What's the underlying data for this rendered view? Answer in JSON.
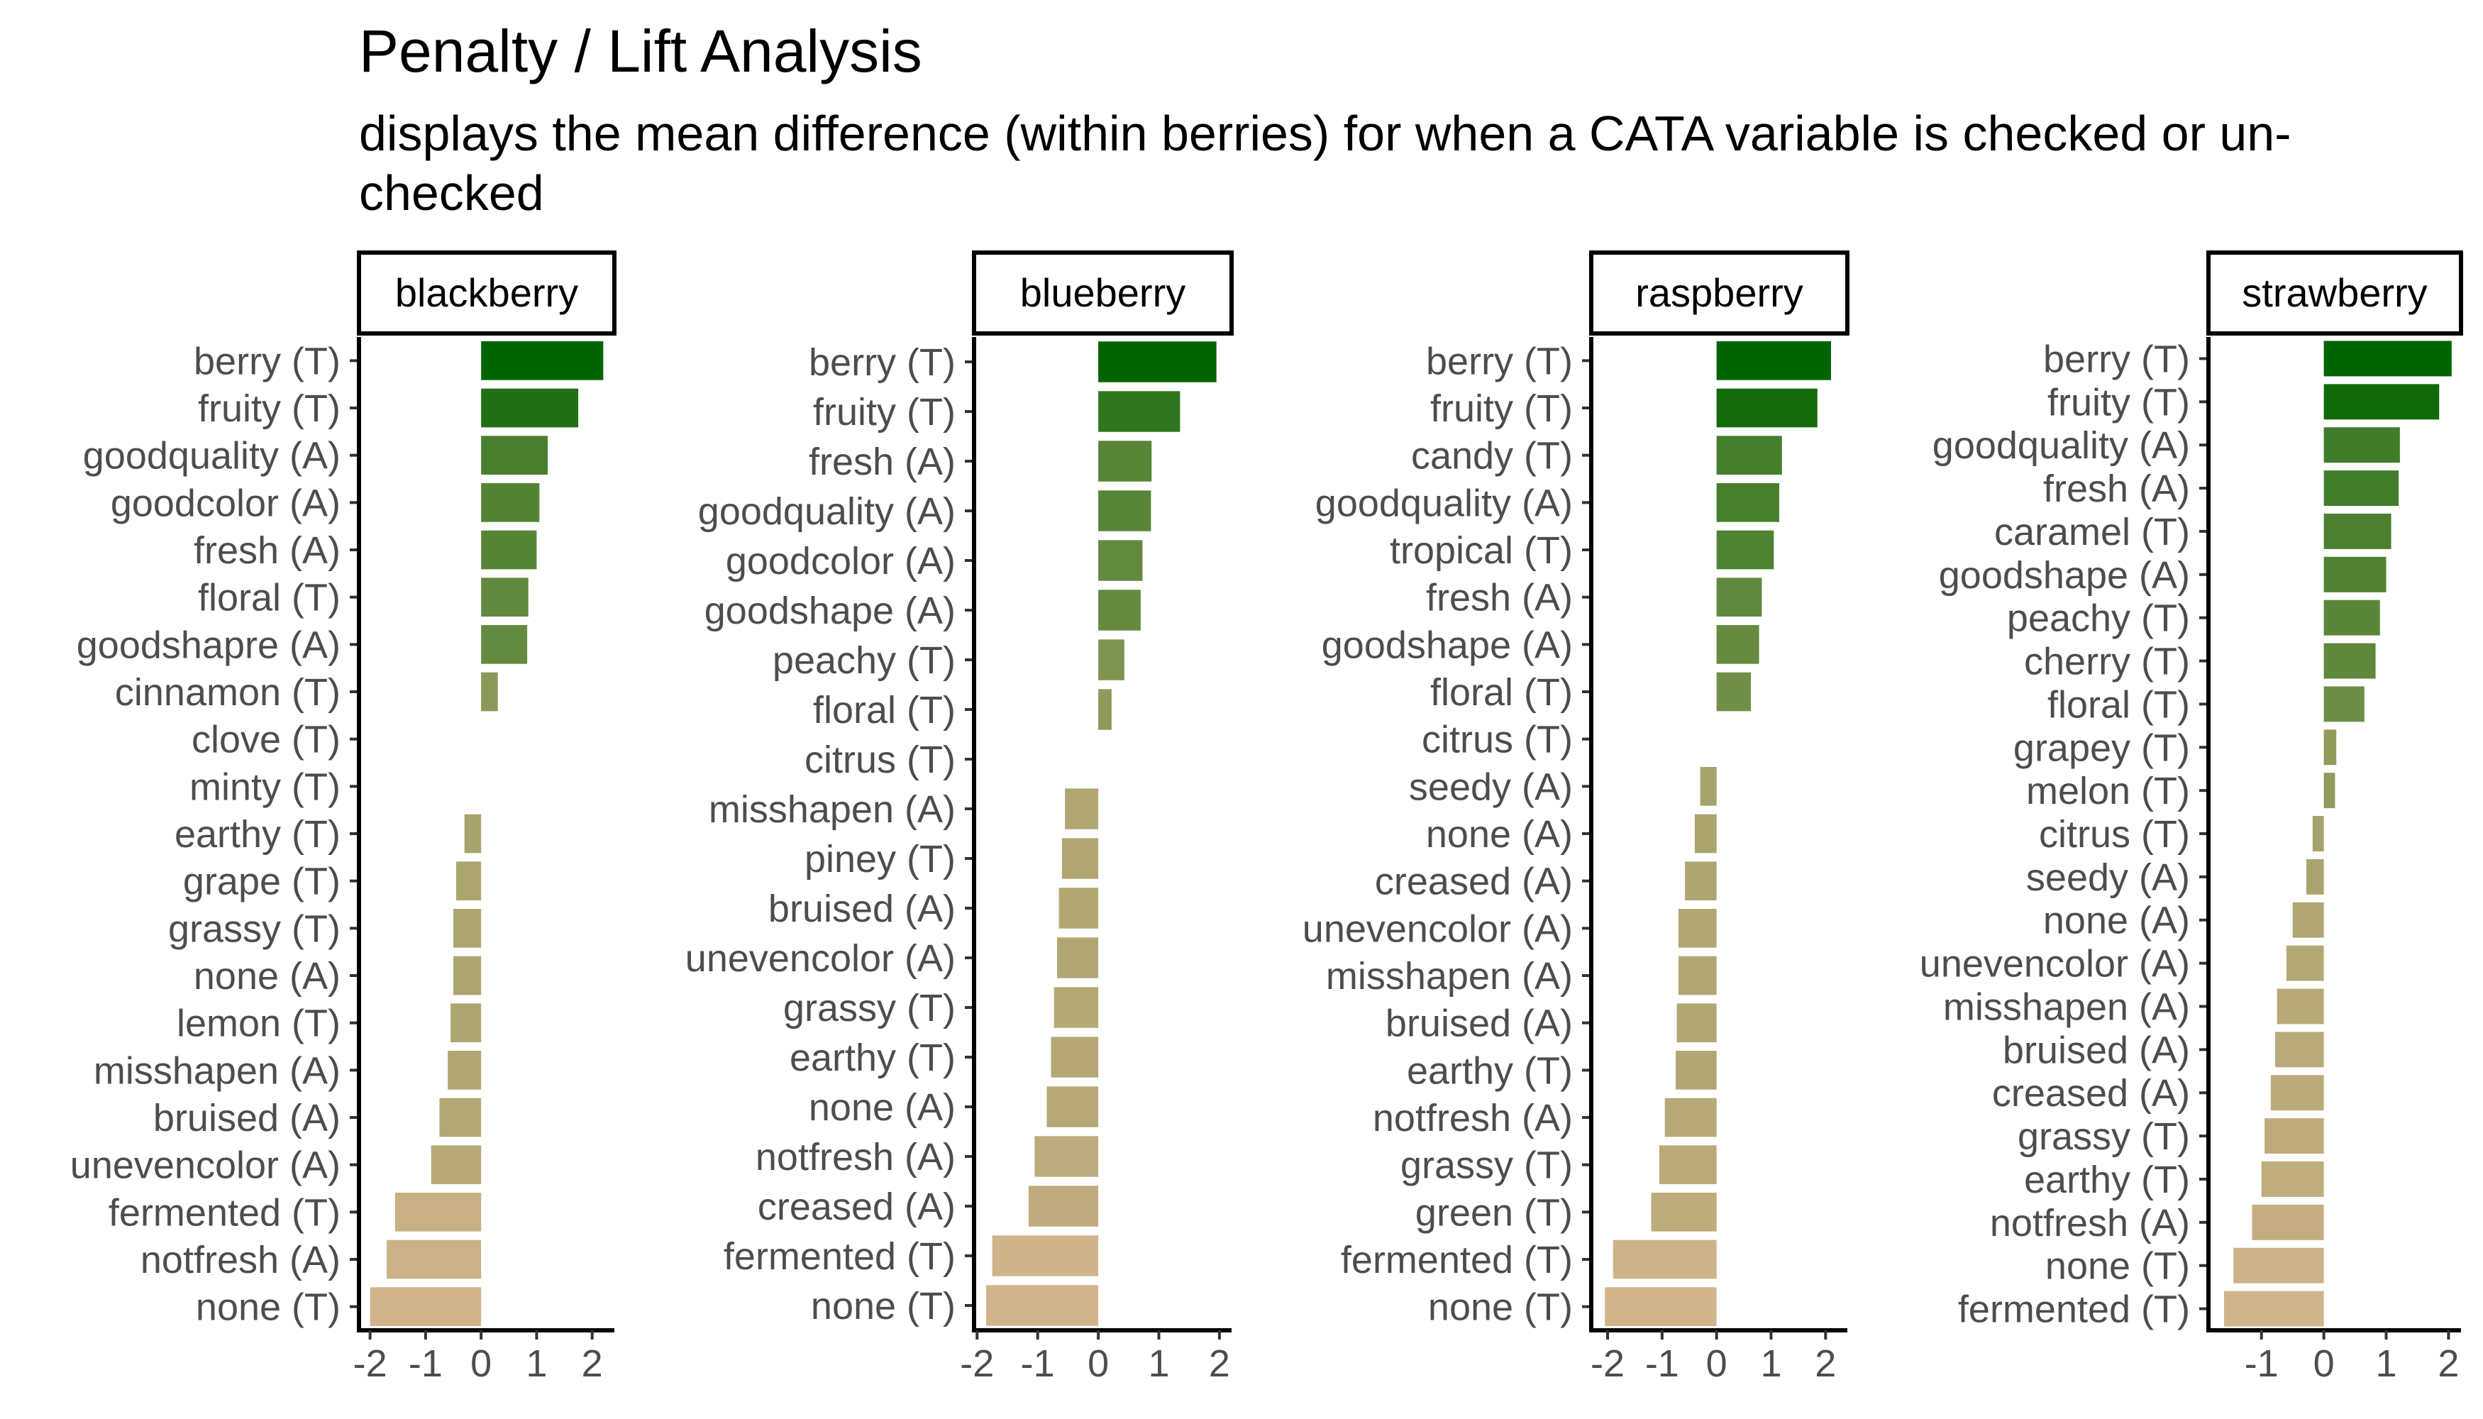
{
  "title": "Penalty / Lift Analysis",
  "subtitle": "displays the mean difference (within berries) for when a CATA variable is checked or un-checked",
  "colors": {
    "high": "#006400",
    "mid": "#a0a066",
    "low": "#d2b48c",
    "axis": "#000000",
    "tick_text": "#4d4d4d"
  },
  "chart_data": [
    {
      "type": "bar",
      "orientation": "horizontal",
      "facet": "blackberry",
      "categories": [
        "berry (T)",
        "fruity (T)",
        "goodquality (A)",
        "goodcolor (A)",
        "fresh (A)",
        "floral (T)",
        "goodshapre (A)",
        "cinnamon (T)",
        "clove (T)",
        "minty (T)",
        "earthy (T)",
        "grape (T)",
        "grassy (T)",
        "none (A)",
        "lemon (T)",
        "misshapen (A)",
        "bruised (A)",
        "unevencolor (A)",
        "fermented (T)",
        "notfresh (A)",
        "none (T)"
      ],
      "values": [
        2.2,
        1.75,
        1.2,
        1.05,
        1.0,
        0.85,
        0.83,
        0.3,
        0,
        0,
        -0.3,
        -0.45,
        -0.5,
        -0.5,
        -0.55,
        -0.6,
        -0.75,
        -0.9,
        -1.55,
        -1.7,
        -2.0
      ],
      "xlim": [
        -2.2,
        2.4
      ],
      "xticks": [
        -2,
        -1,
        0,
        1,
        2
      ],
      "xtick_labels": [
        "-2",
        "-1",
        "0",
        "1",
        "2"
      ]
    },
    {
      "type": "bar",
      "orientation": "horizontal",
      "facet": "blueberry",
      "categories": [
        "berry (T)",
        "fruity (T)",
        "fresh (A)",
        "goodquality (A)",
        "goodcolor (A)",
        "goodshape (A)",
        "peachy (T)",
        "floral (T)",
        "citrus (T)",
        "misshapen (A)",
        "piney (T)",
        "bruised (A)",
        "unevencolor (A)",
        "grassy (T)",
        "earthy (T)",
        "none (A)",
        "notfresh (A)",
        "creased (A)",
        "fermented (T)",
        "none (T)"
      ],
      "values": [
        1.95,
        1.35,
        0.88,
        0.87,
        0.73,
        0.7,
        0.43,
        0.22,
        0,
        -0.55,
        -0.6,
        -0.65,
        -0.68,
        -0.73,
        -0.78,
        -0.85,
        -1.05,
        -1.15,
        -1.75,
        -1.85
      ],
      "xlim": [
        -2.05,
        2.2
      ],
      "xticks": [
        -2,
        -1,
        0,
        1,
        2
      ],
      "xtick_labels": [
        "-2",
        "-1",
        "0",
        "1",
        "2"
      ]
    },
    {
      "type": "bar",
      "orientation": "horizontal",
      "facet": "raspberry",
      "categories": [
        "berry (T)",
        "fruity (T)",
        "candy (T)",
        "goodquality (A)",
        "tropical (T)",
        "fresh (A)",
        "goodshape (A)",
        "floral (T)",
        "citrus (T)",
        "seedy (A)",
        "none (A)",
        "creased (A)",
        "unevencolor (A)",
        "misshapen (A)",
        "bruised (A)",
        "earthy (T)",
        "notfresh (A)",
        "grassy (T)",
        "green (T)",
        "fermented (T)",
        "none (T)"
      ],
      "values": [
        2.1,
        1.85,
        1.2,
        1.15,
        1.05,
        0.83,
        0.78,
        0.63,
        0,
        -0.3,
        -0.4,
        -0.58,
        -0.7,
        -0.7,
        -0.73,
        -0.75,
        -0.95,
        -1.05,
        -1.2,
        -1.9,
        -2.05
      ],
      "xlim": [
        -2.3,
        2.4
      ],
      "xticks": [
        -2,
        -1,
        0,
        1,
        2
      ],
      "xtick_labels": [
        "-2",
        "-1",
        "0",
        "1",
        "2"
      ]
    },
    {
      "type": "bar",
      "orientation": "horizontal",
      "facet": "strawberry",
      "categories": [
        "berry (T)",
        "fruity (T)",
        "goodquality (A)",
        "fresh (A)",
        "caramel (T)",
        "goodshape (A)",
        "peachy (T)",
        "cherry (T)",
        "floral (T)",
        "grapey (T)",
        "melon (T)",
        "citrus (T)",
        "seedy (A)",
        "none (A)",
        "unevencolor (A)",
        "misshapen (A)",
        "bruised (A)",
        "creased (A)",
        "grassy (T)",
        "earthy (T)",
        "notfresh (A)",
        "none (T)",
        "fermented (T)"
      ],
      "values": [
        2.05,
        1.85,
        1.22,
        1.2,
        1.08,
        1.0,
        0.9,
        0.83,
        0.65,
        0.2,
        0.18,
        -0.18,
        -0.28,
        -0.5,
        -0.6,
        -0.75,
        -0.78,
        -0.85,
        -0.95,
        -1.0,
        -1.15,
        -1.45,
        -1.6
      ],
      "xlim": [
        -1.85,
        2.2
      ],
      "xticks": [
        -1,
        0,
        1,
        2
      ],
      "xtick_labels": [
        "-1",
        "0",
        "1",
        "2"
      ]
    }
  ]
}
